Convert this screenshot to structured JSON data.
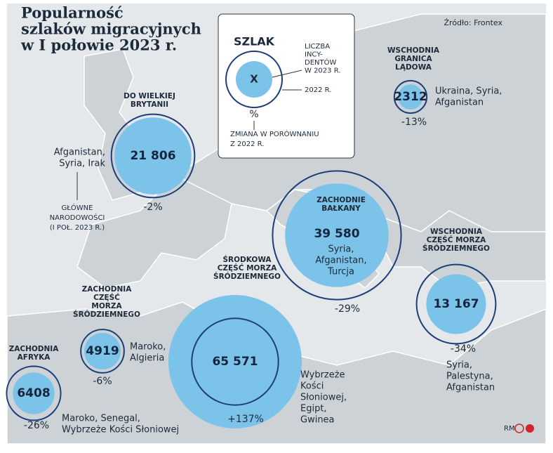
{
  "header": {
    "title_lines": [
      "Popularność",
      "szlaków migracyjnych",
      "w I połowie 2023 r."
    ],
    "source": "Źródło: Frontex",
    "credit": "RM"
  },
  "legend": {
    "title": "SZLAK",
    "symbol": "X",
    "count_lines": [
      "LICZBA",
      "INCY-",
      "DENTÓW",
      "W 2023 R."
    ],
    "ring": "2022 R.",
    "percent": "%",
    "change_lines": [
      "ZMIANA W PORÓWNANIU",
      "Z 2022 R."
    ]
  },
  "nationality_note": [
    "GŁÓWNE",
    "NARODOWOŚCI",
    "(I POŁ. 2023 R.)"
  ],
  "routes": [
    {
      "name_lines": [
        "ZACHODNIA",
        "AFRYKA"
      ],
      "count": 6408,
      "count_label": "6408",
      "change": -26,
      "change_label": "-26%",
      "nationalities": [
        "Maroko, Senegal,",
        "Wybrzeże Kości Słoniowej"
      ]
    },
    {
      "name_lines": [
        "ZACHODNIA",
        "CZĘŚĆ",
        "MORZA",
        "ŚRÓDZIEMNEGO"
      ],
      "count": 4919,
      "count_label": "4919",
      "change": -6,
      "change_label": "-6%",
      "nationalities": [
        "Maroko,",
        "Algieria"
      ]
    },
    {
      "name_lines": [
        "ŚRODKOWA",
        "CZĘŚĆ MORZA",
        "ŚRÓDZIEMNEGO"
      ],
      "count": 65571,
      "count_label": "65 571",
      "change": 137,
      "change_label": "+137%",
      "nationalities": [
        "Wybrzeże",
        "Kości",
        "Słoniowej,",
        "Egipt,",
        "Gwinea"
      ]
    },
    {
      "name_lines": [
        "DO WIELKIEJ",
        "BRYTANII"
      ],
      "count": 21806,
      "count_label": "21 806",
      "change": -2,
      "change_label": "-2%",
      "nationalities": [
        "Afganistan,",
        "Syria, Irak"
      ]
    },
    {
      "name_lines": [
        "ZACHODNIE",
        "BAŁKANY"
      ],
      "count": 39580,
      "count_label": "39 580",
      "change": -29,
      "change_label": "-29%",
      "nationalities": [
        "Syria,",
        "Afganistan,",
        "Turcja"
      ]
    },
    {
      "name_lines": [
        "WSCHODNIA",
        "CZĘŚĆ MORZA",
        "ŚRÓDZIEMNEGO"
      ],
      "count": 13167,
      "count_label": "13 167",
      "change": -34,
      "change_label": "-34%",
      "nationalities": [
        "Syria,",
        "Palestyna,",
        "Afganistan"
      ]
    },
    {
      "name_lines": [
        "WSCHODNIA",
        "GRANICA",
        "LĄDOWA"
      ],
      "count": 2312,
      "count_label": "2312",
      "change": -13,
      "change_label": "-13%",
      "nationalities": [
        "Ukraina, Syria,",
        "Afganistan"
      ]
    }
  ]
}
